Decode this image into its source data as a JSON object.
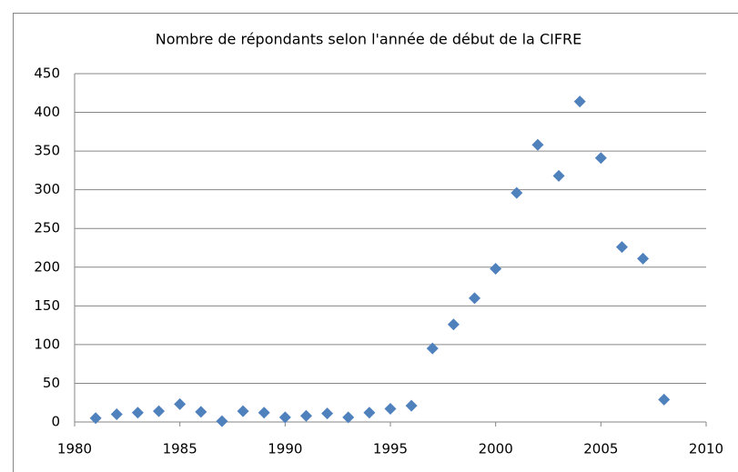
{
  "chart_data": {
    "type": "scatter",
    "title": "Nombre de répondants selon l'année de début de la CIFRE",
    "x": [
      1981,
      1982,
      1983,
      1984,
      1985,
      1986,
      1987,
      1988,
      1989,
      1990,
      1991,
      1992,
      1993,
      1994,
      1995,
      1996,
      1997,
      1998,
      1999,
      2000,
      2001,
      2002,
      2003,
      2004,
      2005,
      2006,
      2007,
      2008
    ],
    "values": [
      5,
      10,
      12,
      14,
      23,
      13,
      1,
      14,
      12,
      6,
      8,
      11,
      6,
      12,
      17,
      21,
      95,
      126,
      160,
      198,
      296,
      358,
      318,
      414,
      341,
      226,
      211,
      29
    ],
    "color": "#4f81bd",
    "xlim": [
      1980,
      2010
    ],
    "xticks": [
      1980,
      1985,
      1990,
      1995,
      2000,
      2005,
      2010
    ],
    "ylim": [
      0,
      450
    ],
    "yticks": [
      0,
      50,
      100,
      150,
      200,
      250,
      300,
      350,
      400,
      450
    ],
    "grid": true
  }
}
